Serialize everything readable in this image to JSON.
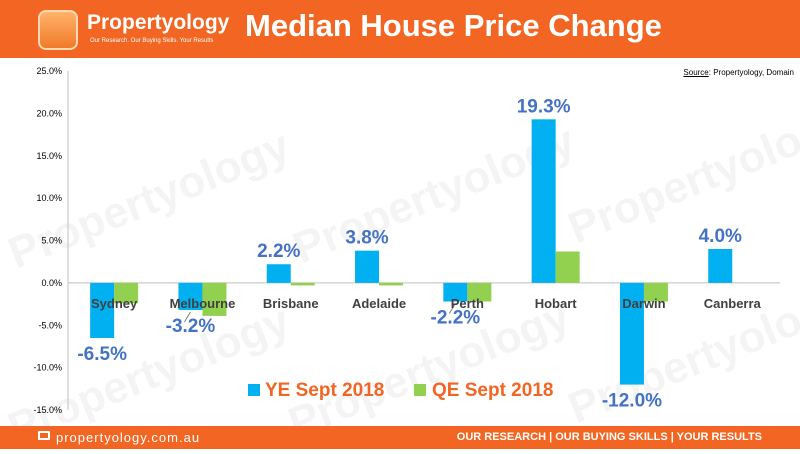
{
  "brand": {
    "name": "Propertyology",
    "tagline": "Our Research. Our Buying Skills. Your Results"
  },
  "header": {
    "title": "Median House Price Change"
  },
  "source": {
    "label": "Source",
    "text": ": Propertyology, Domain"
  },
  "footer": {
    "url": "propertyology.com.au",
    "slogan": "OUR RESEARCH | OUR BUYING SKILLS | YOUR RESULTS"
  },
  "watermark_text": "Propertyology",
  "colors": {
    "brand": "#f26522",
    "ye": "#00b0f0",
    "qe": "#92d050",
    "label": "#4472c4",
    "legend_text": "#f26522"
  },
  "chart_data": {
    "type": "bar",
    "categories": [
      "Sydney",
      "Melbourne",
      "Brisbane",
      "Adelaide",
      "Perth",
      "Hobart",
      "Darwin",
      "Canberra"
    ],
    "series": [
      {
        "name": "YE Sept 2018",
        "values": [
          -6.5,
          -3.2,
          2.2,
          3.8,
          -2.2,
          19.3,
          -12.0,
          4.0
        ],
        "labels": [
          "-6.5%",
          "-3.2%",
          "2.2%",
          "3.8%",
          "-2.2%",
          "19.3%",
          "-12.0%",
          "4.0%"
        ]
      },
      {
        "name": "QE Sept 2018",
        "values": [
          -2.4,
          -3.9,
          -0.3,
          -0.3,
          -2.2,
          3.7,
          -2.2,
          0.0
        ]
      }
    ],
    "y_ticks": [
      "25.0%",
      "20.0%",
      "15.0%",
      "10.0%",
      "5.0%",
      "0.0%",
      "-5.0%",
      "-10.0%",
      "-15.0%"
    ],
    "ylim": [
      -15,
      25
    ],
    "legend_position": "bottom"
  }
}
